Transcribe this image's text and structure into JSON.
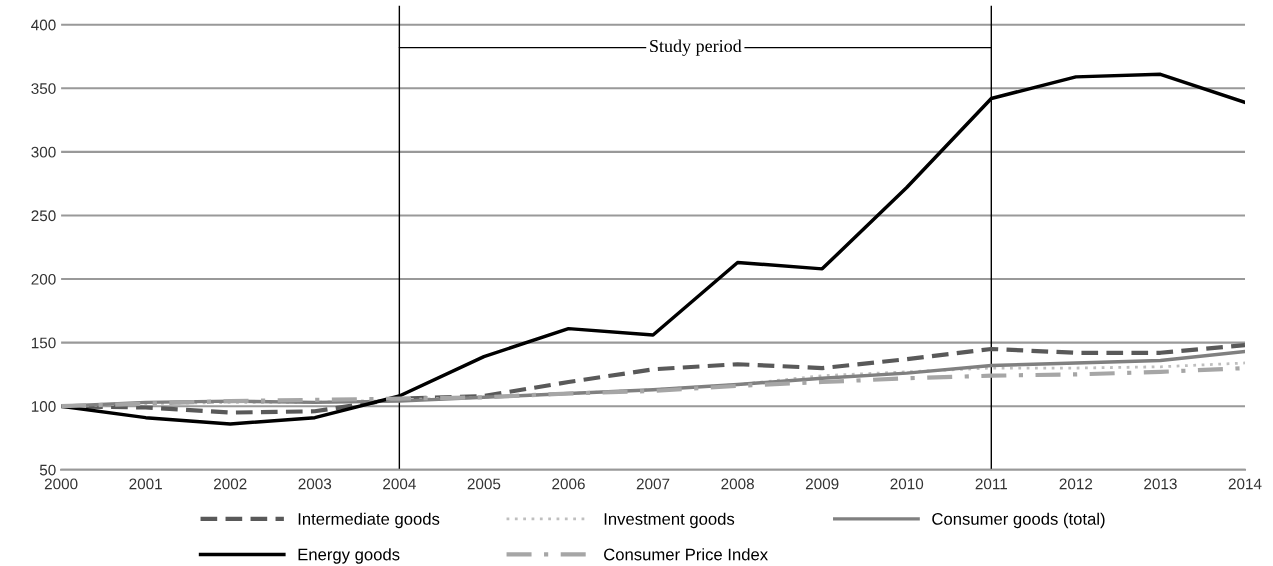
{
  "chart_data": {
    "type": "line",
    "x": [
      2000,
      2001,
      2002,
      2003,
      2004,
      2005,
      2006,
      2007,
      2008,
      2009,
      2010,
      2011,
      2012,
      2013,
      2014
    ],
    "xlim": [
      2000,
      2014
    ],
    "xticks": [
      2000,
      2001,
      2002,
      2003,
      2004,
      2005,
      2006,
      2007,
      2008,
      2009,
      2010,
      2011,
      2012,
      2013,
      2014
    ],
    "ylim": [
      50,
      415
    ],
    "yticks": [
      50,
      100,
      150,
      200,
      250,
      300,
      350,
      400
    ],
    "grid": "y",
    "legend": "bottom",
    "marker": "none",
    "series": [
      {
        "name": "Intermediate goods",
        "color": "#595959",
        "line_style": "dashed",
        "values": [
          100,
          99,
          95,
          96,
          106,
          108,
          119,
          129,
          133,
          130,
          137,
          145,
          142,
          142,
          148
        ]
      },
      {
        "name": "Investment goods",
        "color": "#bfbfbf",
        "line_style": "dotted",
        "values": [
          100,
          102,
          103,
          103,
          105,
          107,
          110,
          113,
          117,
          124,
          127,
          130,
          130,
          131,
          134
        ]
      },
      {
        "name": "Consumer goods (total)",
        "color": "#808080",
        "line_style": "solid",
        "values": [
          100,
          103,
          104,
          103,
          104,
          107,
          110,
          113,
          117,
          122,
          126,
          132,
          134,
          136,
          143
        ]
      },
      {
        "name": "Energy goods",
        "color": "#000000",
        "line_style": "solid",
        "values": [
          100,
          91,
          86,
          91,
          108,
          139,
          161,
          156,
          213,
          208,
          272,
          342,
          359,
          361,
          339
        ]
      },
      {
        "name": "Consumer Price Index",
        "color": "#a6a6a6",
        "line_style": "dashdot",
        "values": [
          100,
          102,
          104,
          105,
          106,
          107,
          110,
          112,
          116,
          119,
          122,
          124,
          125,
          127,
          130
        ]
      }
    ],
    "ref_lines": [
      {
        "axis": "x",
        "value": 2004,
        "color": "#000000"
      },
      {
        "axis": "x",
        "value": 2011,
        "color": "#000000"
      }
    ],
    "annotations": [
      {
        "text": "Study period",
        "x": 2004,
        "y": 382
      }
    ]
  }
}
